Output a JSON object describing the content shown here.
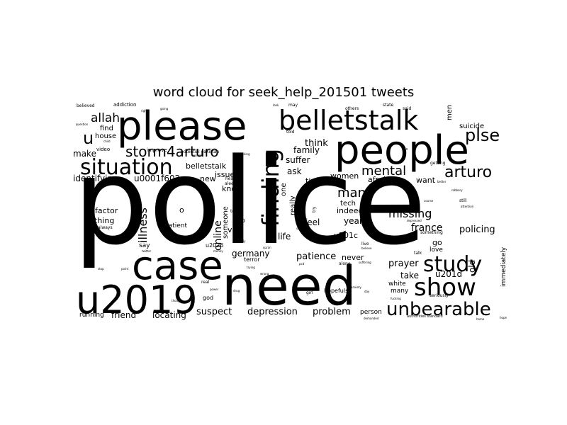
{
  "chart_data": {
    "type": "wordcloud",
    "title": "word cloud for seek_help_201501 tweets",
    "background": "#ffffff",
    "color": "#000000",
    "words": [
      {
        "text": "police",
        "weight": 100
      },
      {
        "text": "need",
        "weight": 62
      },
      {
        "text": "people",
        "weight": 55
      },
      {
        "text": "please",
        "weight": 54
      },
      {
        "text": "case",
        "weight": 50
      },
      {
        "text": "u2019",
        "weight": 44
      },
      {
        "text": "belletstalk",
        "weight": 34
      },
      {
        "text": "finding",
        "weight": 30
      },
      {
        "text": "show",
        "weight": 27
      },
      {
        "text": "situation",
        "weight": 25
      },
      {
        "text": "study",
        "weight": 25
      },
      {
        "text": "unbearable",
        "weight": 22
      },
      {
        "text": "plse",
        "weight": 19
      },
      {
        "text": "arturo",
        "weight": 19
      },
      {
        "text": "storm4arturo",
        "weight": 17
      },
      {
        "text": "u",
        "weight": 20
      },
      {
        "text": "mental",
        "weight": 17
      },
      {
        "text": "man",
        "weight": 16
      },
      {
        "text": "allah",
        "weight": 15
      },
      {
        "text": "missing",
        "weight": 14
      },
      {
        "text": "illness",
        "weight": 13
      },
      {
        "text": "online",
        "weight": 12
      },
      {
        "text": "france",
        "weight": 12
      },
      {
        "text": "depression",
        "weight": 11
      },
      {
        "text": "problem",
        "weight": 11
      },
      {
        "text": "suspect",
        "weight": 11
      },
      {
        "text": "locating",
        "weight": 10
      },
      {
        "text": "friend",
        "weight": 10
      },
      {
        "text": "policing",
        "weight": 11
      },
      {
        "text": "prayer",
        "weight": 11
      },
      {
        "text": "patience",
        "weight": 11
      },
      {
        "text": "think",
        "weight": 11
      },
      {
        "text": "suffer",
        "weight": 10
      },
      {
        "text": "family",
        "weight": 10
      },
      {
        "text": "ask",
        "weight": 10
      },
      {
        "text": "identifying",
        "weight": 10
      },
      {
        "text": "u0001f602",
        "weight": 10
      },
      {
        "text": "make",
        "weight": 10
      },
      {
        "text": "feel",
        "weight": 10
      },
      {
        "text": "life",
        "weight": 10
      },
      {
        "text": "year",
        "weight": 10
      },
      {
        "text": "take",
        "weight": 10
      },
      {
        "text": "u201d",
        "weight": 10
      },
      {
        "text": "germany",
        "weight": 10
      },
      {
        "text": "old",
        "weight": 10
      },
      {
        "text": "women",
        "weight": 9
      },
      {
        "text": "afraid",
        "weight": 9
      },
      {
        "text": "want",
        "weight": 9
      },
      {
        "text": "know",
        "weight": 9
      },
      {
        "text": "issue",
        "weight": 9
      },
      {
        "text": "new",
        "weight": 9
      },
      {
        "text": "time",
        "weight": 9
      },
      {
        "text": "belletstaik",
        "weight": 9
      },
      {
        "text": "indeed",
        "weight": 9
      },
      {
        "text": "u201c",
        "weight": 9
      },
      {
        "text": "never",
        "weight": 9
      },
      {
        "text": "via",
        "weight": 9
      },
      {
        "text": "thing",
        "weight": 9
      },
      {
        "text": "factor",
        "weight": 9
      },
      {
        "text": "o",
        "weight": 9
      },
      {
        "text": "suicide",
        "weight": 8
      },
      {
        "text": "go",
        "weight": 9
      },
      {
        "text": "men",
        "weight": 8
      },
      {
        "text": "find",
        "weight": 8
      },
      {
        "text": "house",
        "weight": 8
      },
      {
        "text": "really",
        "weight": 8
      },
      {
        "text": "tech",
        "weight": 8
      },
      {
        "text": "someone",
        "weight": 8
      },
      {
        "text": "one",
        "weight": 8
      },
      {
        "text": "gop",
        "weight": 7
      },
      {
        "text": "patient",
        "weight": 7
      },
      {
        "text": "say",
        "weight": 7
      },
      {
        "text": "immediately",
        "weight": 7
      },
      {
        "text": "white",
        "weight": 7
      },
      {
        "text": "many",
        "weight": 7
      },
      {
        "text": "person",
        "weight": 7
      },
      {
        "text": "running",
        "weight": 7
      },
      {
        "text": "love",
        "weight": 7
      },
      {
        "text": "hopefuls",
        "weight": 6
      },
      {
        "text": "god",
        "weight": 6
      },
      {
        "text": "video",
        "weight": 6
      },
      {
        "text": "improve",
        "weight": 6
      },
      {
        "text": "potential pakistan",
        "weight": 5
      },
      {
        "text": "addiction",
        "weight": 5
      },
      {
        "text": "believed",
        "weight": 5
      },
      {
        "text": "always",
        "weight": 5
      },
      {
        "text": "today",
        "weight": 5
      },
      {
        "text": "u2026",
        "weight": 6
      },
      {
        "text": "terror",
        "weight": 6
      },
      {
        "text": "health",
        "weight": 5
      },
      {
        "text": "aleem",
        "weight": 5
      },
      {
        "text": "try",
        "weight": 5
      },
      {
        "text": "told",
        "weight": 5
      },
      {
        "text": "others",
        "weight": 5
      },
      {
        "text": "said",
        "weight": 5
      },
      {
        "text": "state",
        "weight": 5
      },
      {
        "text": "getting",
        "weight": 5
      },
      {
        "text": "still",
        "weight": 5
      },
      {
        "text": "something",
        "weight": 5
      },
      {
        "text": "talk",
        "weight": 5
      },
      {
        "text": "live",
        "weight": 5
      },
      {
        "text": "alone",
        "weight": 5
      },
      {
        "text": "seriously",
        "weight": 5
      },
      {
        "text": "authorities standard",
        "weight": 5
      },
      {
        "text": "girl",
        "weight": 5
      },
      {
        "text": "real",
        "weight": 5
      },
      {
        "text": "may",
        "weight": 5
      },
      {
        "text": "best",
        "weight": 4
      },
      {
        "text": "power",
        "weight": 4
      },
      {
        "text": "drug",
        "weight": 4
      },
      {
        "text": "day",
        "weight": 4
      },
      {
        "text": "sign",
        "weight": 4
      },
      {
        "text": "young",
        "weight": 4
      },
      {
        "text": "quran",
        "weight": 4
      },
      {
        "text": "believe",
        "weight": 4
      },
      {
        "text": "pcd",
        "weight": 4
      },
      {
        "text": "demanded",
        "weight": 4
      },
      {
        "text": "robbery",
        "weight": 4
      },
      {
        "text": "better",
        "weight": 4
      },
      {
        "text": "course",
        "weight": 4
      },
      {
        "text": "look",
        "weight": 4
      },
      {
        "text": "right",
        "weight": 4
      },
      {
        "text": "going",
        "weight": 4
      },
      {
        "text": "question",
        "weight": 4
      },
      {
        "text": "child",
        "weight": 4
      },
      {
        "text": "terrorist",
        "weight": 4
      },
      {
        "text": "seeking",
        "weight": 4
      },
      {
        "text": "trying",
        "weight": 4
      },
      {
        "text": "mentally",
        "weight": 4
      },
      {
        "text": "keep",
        "weight": 4
      },
      {
        "text": "point",
        "weight": 4
      },
      {
        "text": "stop",
        "weight": 4
      },
      {
        "text": "depressed",
        "weight": 4
      },
      {
        "text": "anxiety",
        "weight": 4
      },
      {
        "text": "fucking",
        "weight": 4
      },
      {
        "text": "suffering",
        "weight": 4
      },
      {
        "text": "pls",
        "weight": 4
      },
      {
        "text": "attention",
        "weight": 4
      },
      {
        "text": "home",
        "weight": 4
      },
      {
        "text": "hope",
        "weight": 4
      },
      {
        "text": "thought",
        "weight": 4
      },
      {
        "text": "twitter",
        "weight": 4
      },
      {
        "text": "money",
        "weight": 4
      },
      {
        "text": "scientists",
        "weight": 4
      },
      {
        "text": "wrong",
        "weight": 4
      }
    ]
  }
}
